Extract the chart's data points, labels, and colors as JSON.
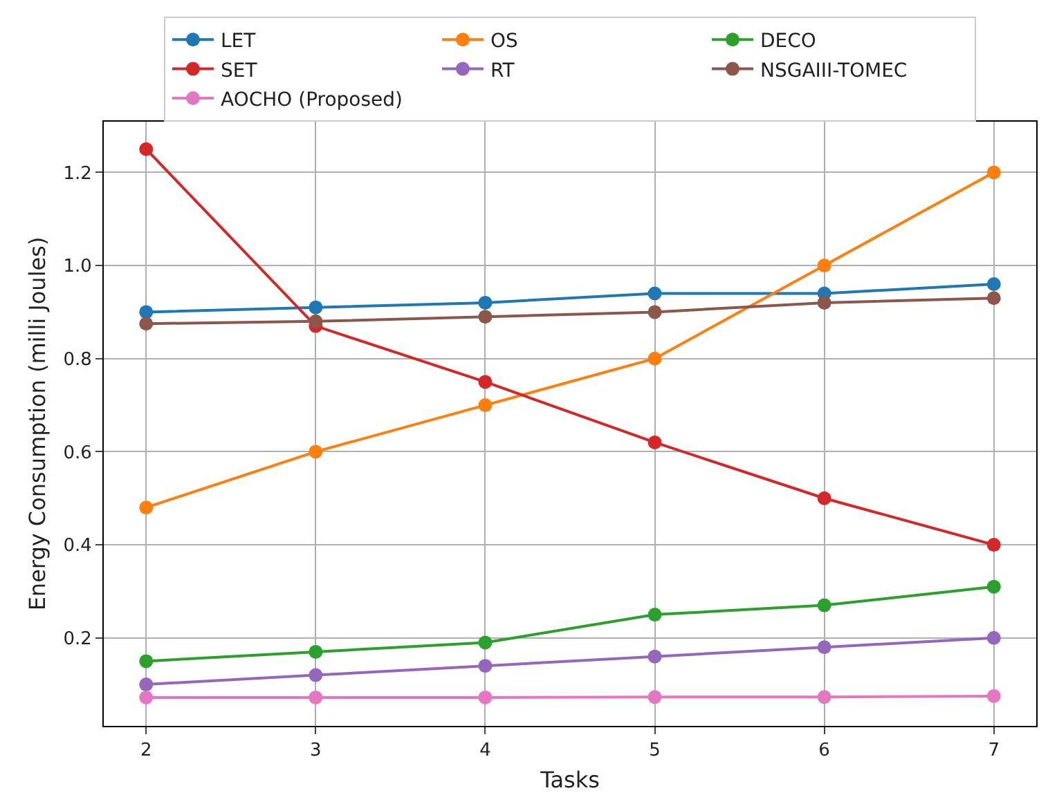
{
  "chart_data": {
    "type": "line",
    "xlabel": "Tasks",
    "ylabel": "Energy Consumption (milli Joules)",
    "x": [
      2,
      3,
      4,
      5,
      6,
      7
    ],
    "series": [
      {
        "name": "LET",
        "color": "#1f77b4",
        "values": [
          0.9,
          0.91,
          0.92,
          0.94,
          0.94,
          0.96
        ]
      },
      {
        "name": "OS",
        "color": "#ff7f0e",
        "values": [
          0.48,
          0.6,
          0.7,
          0.8,
          1.0,
          1.2
        ]
      },
      {
        "name": "DECO",
        "color": "#2ca02c",
        "values": [
          0.15,
          0.17,
          0.19,
          0.25,
          0.27,
          0.31
        ]
      },
      {
        "name": "SET",
        "color": "#d62728",
        "values": [
          1.25,
          0.87,
          0.75,
          0.62,
          0.5,
          0.4
        ]
      },
      {
        "name": "RT",
        "color": "#9467bd",
        "values": [
          0.1,
          0.12,
          0.14,
          0.16,
          0.18,
          0.2
        ]
      },
      {
        "name": "NSGAIII-TOMEC",
        "color": "#8c564b",
        "values": [
          0.875,
          0.88,
          0.89,
          0.9,
          0.92,
          0.93
        ]
      },
      {
        "name": "AOCHO (Proposed)",
        "color": "#e377c2",
        "values": [
          0.072,
          0.072,
          0.072,
          0.073,
          0.073,
          0.075
        ]
      }
    ],
    "xlim": [
      1.75,
      7.25
    ],
    "xticks": [
      2,
      3,
      4,
      5,
      6,
      7
    ],
    "ylim": [
      0.011,
      1.309
    ],
    "yticks": [
      0.2,
      0.4,
      0.6,
      0.8,
      {
        "value": 1,
        "label": "1.0"
      },
      1.2
    ],
    "grid": true,
    "legend": "top",
    "marker": "circle",
    "line_style": "solid"
  }
}
